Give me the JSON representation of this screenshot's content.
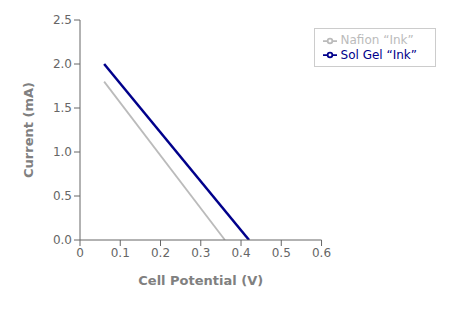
{
  "chart_data": {
    "type": "line",
    "xlabel": "Cell Potential (V)",
    "ylabel": "Current (mA)",
    "series": [
      {
        "name": "Sol Gel “Ink”",
        "color": "#00008B",
        "x": [
          0.06,
          0.42
        ],
        "values": [
          2.0,
          0.0
        ]
      },
      {
        "name": "Nafion “Ink”",
        "color": "#BBBBBB",
        "x": [
          0.06,
          0.36
        ],
        "values": [
          1.8,
          0.0
        ]
      }
    ],
    "xlim": [
      0,
      0.6
    ],
    "ylim": [
      0,
      2.5
    ],
    "xticks": [
      0,
      0.1,
      0.2,
      0.3,
      0.4,
      0.5,
      0.6
    ],
    "yticks": [
      {
        "value": 0,
        "label": "0.0"
      },
      0.5,
      {
        "value": 1,
        "label": "1.0"
      },
      1.5,
      {
        "value": 2,
        "label": "2.0"
      },
      2.5
    ],
    "grid": false,
    "legend": "upper right"
  }
}
